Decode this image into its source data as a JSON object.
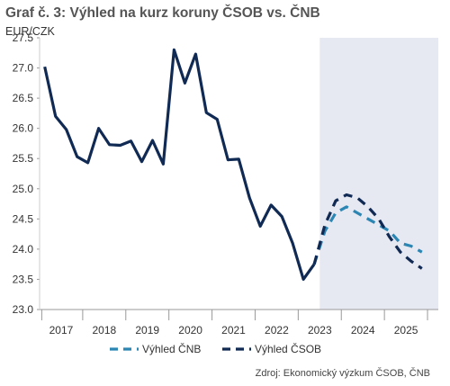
{
  "chart_data": {
    "type": "line",
    "title": "Graf č. 3: Výhled na kurz koruny ČSOB vs. ČNB",
    "ylabel": "EUR/CZK",
    "source": "Zdroj: Ekonomický výzkum ČSOB, ČNB",
    "ylim": [
      23.0,
      27.5
    ],
    "yticks": [
      "23.0",
      "23.5",
      "24.0",
      "24.5",
      "25.0",
      "25.5",
      "26.0",
      "26.5",
      "27.0",
      "27.5"
    ],
    "xlim": [
      2016.5,
      2025.75
    ],
    "xticks": [
      {
        "label": "2017",
        "x": 2017.0
      },
      {
        "label": "2018",
        "x": 2018.0
      },
      {
        "label": "2019",
        "x": 2019.0
      },
      {
        "label": "2020",
        "x": 2020.0
      },
      {
        "label": "2021",
        "x": 2021.0
      },
      {
        "label": "2022",
        "x": 2022.0
      },
      {
        "label": "2023",
        "x": 2023.0
      },
      {
        "label": "2024",
        "x": 2024.0
      },
      {
        "label": "2025",
        "x": 2025.0
      }
    ],
    "forecast_region": [
      2023.0,
      2025.75
    ],
    "forecast_region_color": "#e6e8f2",
    "series": [
      {
        "name": "",
        "style": "solid",
        "color": "#102a54",
        "points": [
          [
            2016.62,
            27.02
          ],
          [
            2016.87,
            26.2
          ],
          [
            2017.12,
            25.98
          ],
          [
            2017.37,
            25.53
          ],
          [
            2017.62,
            25.43
          ],
          [
            2017.87,
            26.0
          ],
          [
            2018.12,
            25.73
          ],
          [
            2018.37,
            25.72
          ],
          [
            2018.62,
            25.79
          ],
          [
            2018.87,
            25.45
          ],
          [
            2019.12,
            25.8
          ],
          [
            2019.37,
            25.41
          ],
          [
            2019.62,
            27.3
          ],
          [
            2019.87,
            26.75
          ],
          [
            2020.12,
            27.23
          ],
          [
            2020.37,
            26.26
          ],
          [
            2020.62,
            26.15
          ],
          [
            2020.87,
            25.48
          ],
          [
            2021.12,
            25.49
          ],
          [
            2021.37,
            24.85
          ],
          [
            2021.62,
            24.38
          ],
          [
            2021.87,
            24.73
          ],
          [
            2022.12,
            24.54
          ],
          [
            2022.37,
            24.1
          ],
          [
            2022.62,
            23.5
          ],
          [
            2022.87,
            23.75
          ]
        ]
      },
      {
        "name": "Výhled ČNB",
        "style": "dashed",
        "color": "#2b86b4",
        "points": [
          [
            2022.87,
            23.75
          ],
          [
            2023.12,
            24.3
          ],
          [
            2023.37,
            24.6
          ],
          [
            2023.62,
            24.7
          ],
          [
            2023.87,
            24.6
          ],
          [
            2024.12,
            24.5
          ],
          [
            2024.37,
            24.4
          ],
          [
            2024.62,
            24.3
          ],
          [
            2024.87,
            24.1
          ],
          [
            2025.12,
            24.05
          ],
          [
            2025.37,
            23.95
          ]
        ]
      },
      {
        "name": "Výhled ČSOB",
        "style": "dashed",
        "color": "#102a54",
        "points": [
          [
            2022.87,
            23.75
          ],
          [
            2023.12,
            24.4
          ],
          [
            2023.37,
            24.8
          ],
          [
            2023.62,
            24.9
          ],
          [
            2023.87,
            24.85
          ],
          [
            2024.12,
            24.7
          ],
          [
            2024.37,
            24.5
          ],
          [
            2024.62,
            24.2
          ],
          [
            2024.87,
            23.95
          ],
          [
            2025.12,
            23.8
          ],
          [
            2025.37,
            23.68
          ]
        ]
      }
    ],
    "legend_position": "bottom"
  }
}
